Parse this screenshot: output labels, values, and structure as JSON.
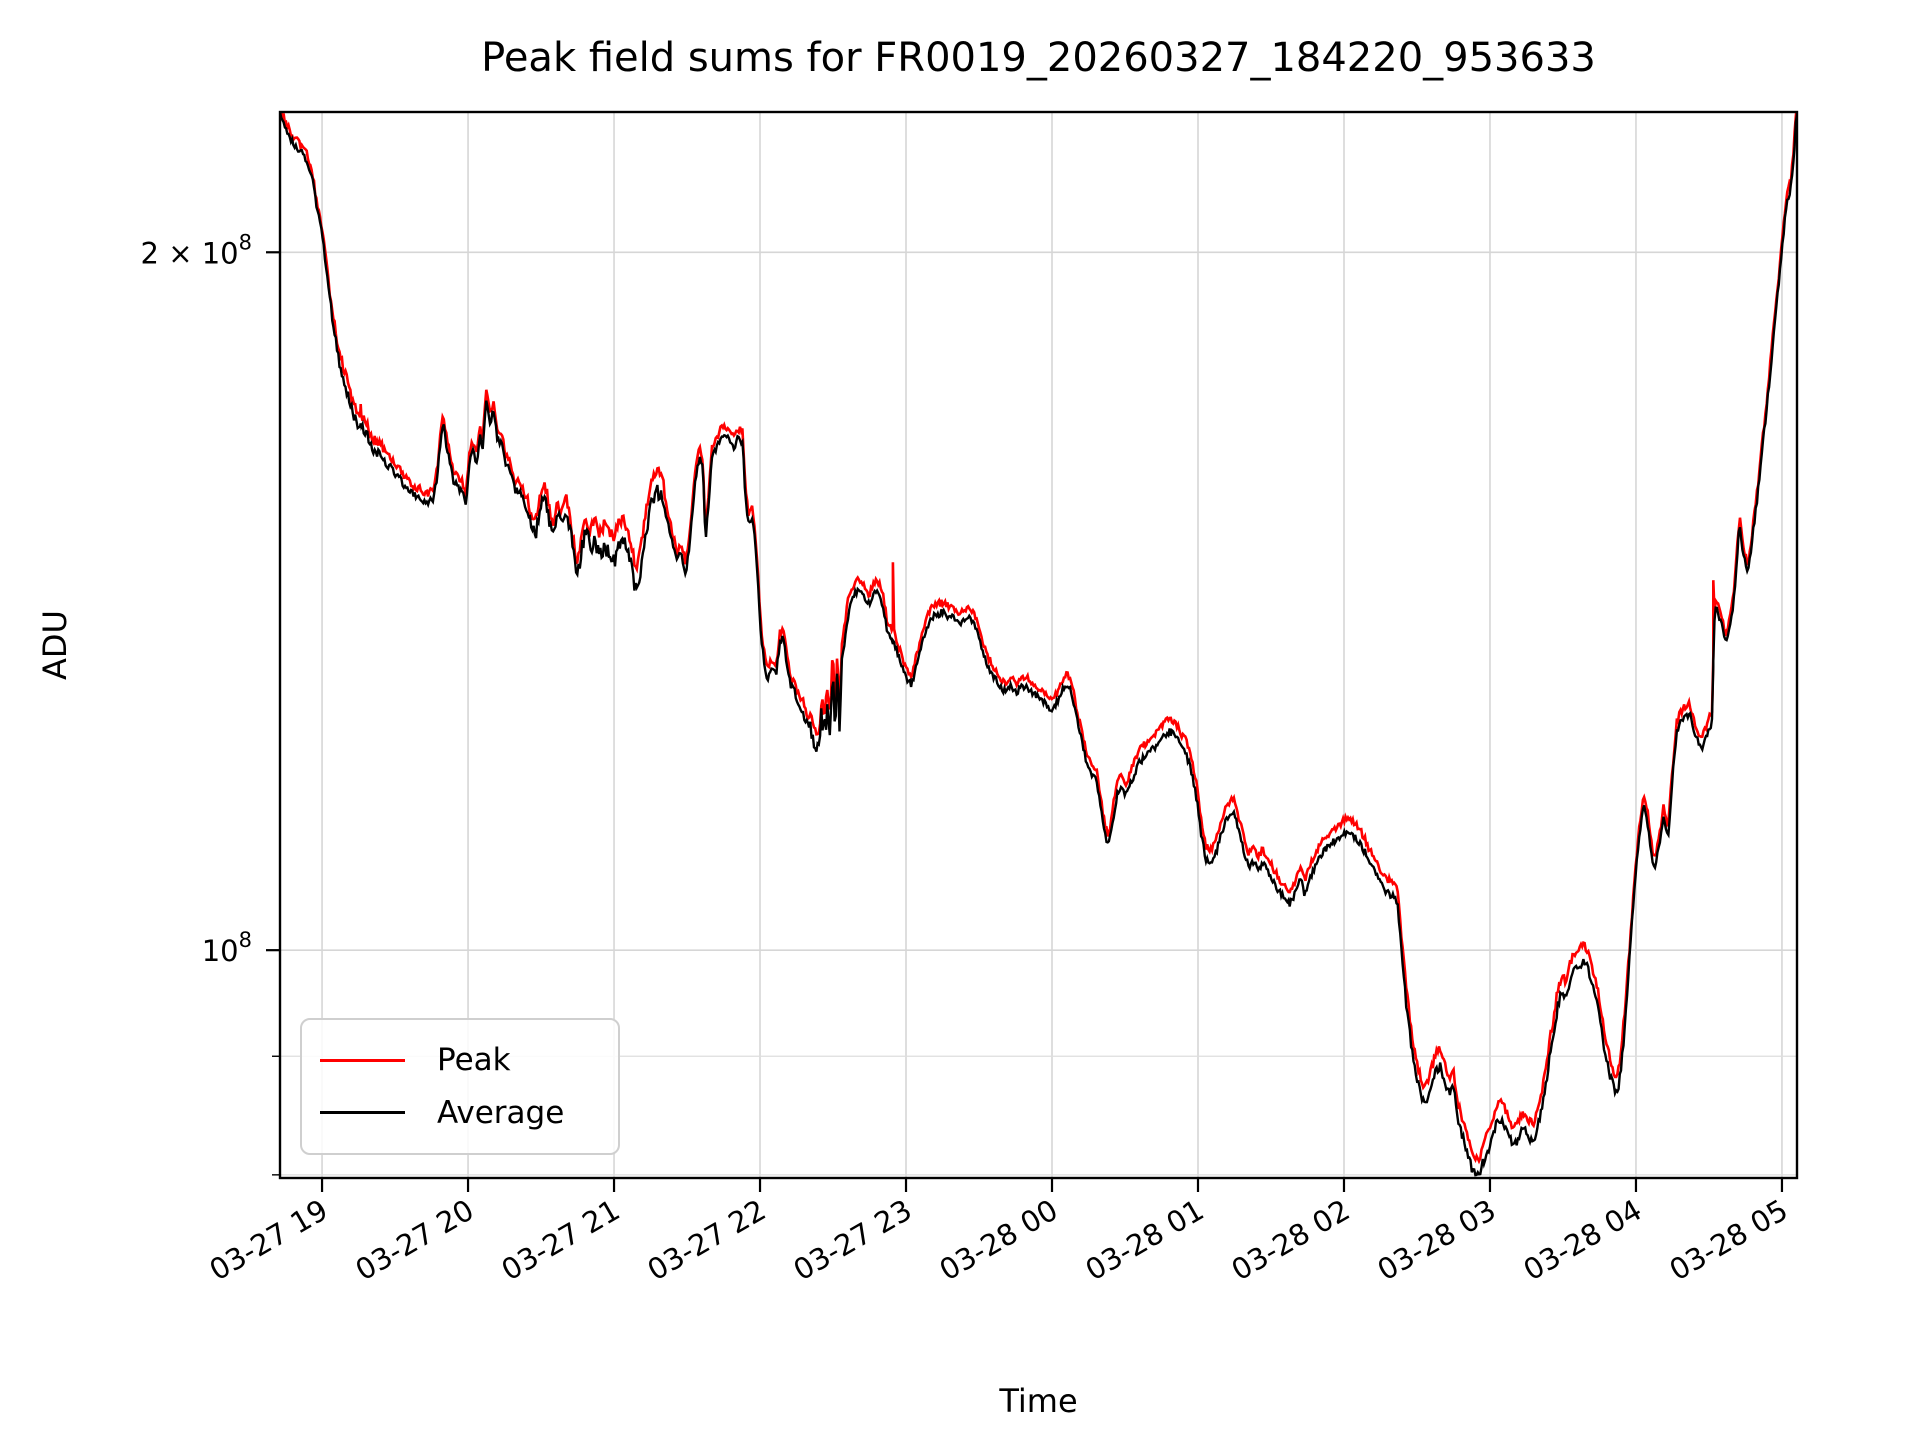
{
  "title": "Peak field sums for FR0019_20260327_184220_953633",
  "axes": {
    "x_label": "Time",
    "y_label": "ADU"
  },
  "legend": [
    {
      "label": "Peak",
      "color": "#ff0000"
    },
    {
      "label": "Average",
      "color": "#000000"
    }
  ],
  "colors": {
    "grid_major": "#d6d6d6",
    "grid_minor": "#dedede",
    "spine": "#000000",
    "background": "#ffffff"
  },
  "chart_data": {
    "type": "line",
    "title": "Peak field sums for FR0019_20260327_184220_953633",
    "xlabel": "Time",
    "ylabel": "ADU",
    "y_scale": "log",
    "grid": true,
    "legend_position": "lower left",
    "value_unit": "1e8 ADU",
    "x_unit": "hours since 2026-03-27 00:00",
    "x_range": [
      18.712,
      29.103
    ],
    "y_range": [
      0.7975,
      2.299
    ],
    "x_ticks": [
      {
        "t": 19,
        "label": "03-27 19"
      },
      {
        "t": 20,
        "label": "03-27 20"
      },
      {
        "t": 21,
        "label": "03-27 21"
      },
      {
        "t": 22,
        "label": "03-27 22"
      },
      {
        "t": 23,
        "label": "03-27 23"
      },
      {
        "t": 24,
        "label": "03-28 00"
      },
      {
        "t": 25,
        "label": "03-28 01"
      },
      {
        "t": 26,
        "label": "03-28 02"
      },
      {
        "t": 27,
        "label": "03-28 03"
      },
      {
        "t": 28,
        "label": "03-28 04"
      },
      {
        "t": 29,
        "label": "03-28 05"
      }
    ],
    "y_major_ticks": [
      {
        "v": 2.0,
        "main": "2 × 10",
        "sup": "8"
      },
      {
        "v": 1.0,
        "main": "10",
        "sup": "8"
      }
    ],
    "y_minor_ticks": [
      0.9,
      0.8
    ],
    "series": [
      {
        "name": "Peak",
        "color": "#ff0000"
      },
      {
        "name": "Average",
        "color": "#000000"
      }
    ],
    "average_anchors": [
      [
        18.712,
        2.3
      ],
      [
        18.75,
        2.262
      ],
      [
        18.79,
        2.235
      ],
      [
        18.83,
        2.22
      ],
      [
        18.87,
        2.205
      ],
      [
        18.9,
        2.19
      ],
      [
        18.93,
        2.155
      ],
      [
        18.96,
        2.1
      ],
      [
        19.0,
        2.035
      ],
      [
        19.03,
        1.965
      ],
      [
        19.06,
        1.895
      ],
      [
        19.09,
        1.835
      ],
      [
        19.12,
        1.79
      ],
      [
        19.15,
        1.762
      ],
      [
        19.18,
        1.735
      ],
      [
        19.21,
        1.703
      ],
      [
        19.24,
        1.69
      ],
      [
        19.265,
        1.682
      ],
      [
        19.29,
        1.675
      ],
      [
        19.32,
        1.66
      ],
      [
        19.35,
        1.645
      ],
      [
        19.38,
        1.638
      ],
      [
        19.41,
        1.632
      ],
      [
        19.44,
        1.62
      ],
      [
        19.47,
        1.615
      ],
      [
        19.5,
        1.606
      ],
      [
        19.53,
        1.6
      ],
      [
        19.56,
        1.585
      ],
      [
        19.6,
        1.576
      ],
      [
        19.64,
        1.57
      ],
      [
        19.68,
        1.564
      ],
      [
        19.72,
        1.559
      ],
      [
        19.76,
        1.564
      ],
      [
        19.79,
        1.6
      ],
      [
        19.81,
        1.655
      ],
      [
        19.83,
        1.69
      ],
      [
        19.855,
        1.645
      ],
      [
        19.88,
        1.62
      ],
      [
        19.9,
        1.593
      ],
      [
        19.93,
        1.585
      ],
      [
        19.96,
        1.576
      ],
      [
        19.985,
        1.556
      ],
      [
        20.01,
        1.628
      ],
      [
        20.035,
        1.64
      ],
      [
        20.06,
        1.62
      ],
      [
        20.08,
        1.668
      ],
      [
        20.1,
        1.645
      ],
      [
        20.125,
        1.73
      ],
      [
        20.15,
        1.687
      ],
      [
        20.175,
        1.708
      ],
      [
        20.2,
        1.663
      ],
      [
        20.23,
        1.652
      ],
      [
        20.26,
        1.62
      ],
      [
        20.29,
        1.608
      ],
      [
        20.32,
        1.58
      ],
      [
        20.36,
        1.574
      ],
      [
        20.4,
        1.55
      ],
      [
        20.44,
        1.52
      ],
      [
        20.47,
        1.516
      ],
      [
        20.49,
        1.553
      ],
      [
        20.52,
        1.575
      ],
      [
        20.55,
        1.545
      ],
      [
        20.58,
        1.5
      ],
      [
        20.61,
        1.548
      ],
      [
        20.64,
        1.525
      ],
      [
        20.67,
        1.553
      ],
      [
        20.7,
        1.52
      ],
      [
        20.73,
        1.47
      ],
      [
        20.75,
        1.45
      ],
      [
        20.78,
        1.49
      ],
      [
        20.81,
        1.52
      ],
      [
        20.84,
        1.487
      ],
      [
        20.87,
        1.5
      ],
      [
        20.9,
        1.48
      ],
      [
        20.93,
        1.493
      ],
      [
        20.96,
        1.487
      ],
      [
        21.0,
        1.47
      ],
      [
        21.03,
        1.497
      ],
      [
        21.06,
        1.5
      ],
      [
        21.09,
        1.49
      ],
      [
        21.12,
        1.465
      ],
      [
        21.14,
        1.44
      ],
      [
        21.16,
        1.435
      ],
      [
        21.19,
        1.47
      ],
      [
        21.22,
        1.52
      ],
      [
        21.26,
        1.56
      ],
      [
        21.3,
        1.578
      ],
      [
        21.34,
        1.558
      ],
      [
        21.37,
        1.53
      ],
      [
        21.4,
        1.5
      ],
      [
        21.43,
        1.47
      ],
      [
        21.46,
        1.485
      ],
      [
        21.49,
        1.455
      ],
      [
        21.51,
        1.48
      ],
      [
        21.53,
        1.525
      ],
      [
        21.56,
        1.6
      ],
      [
        21.585,
        1.63
      ],
      [
        21.61,
        1.612
      ],
      [
        21.625,
        1.5
      ],
      [
        21.65,
        1.56
      ],
      [
        21.67,
        1.63
      ],
      [
        21.71,
        1.652
      ],
      [
        21.75,
        1.668
      ],
      [
        21.79,
        1.66
      ],
      [
        21.82,
        1.645
      ],
      [
        21.85,
        1.663
      ],
      [
        21.88,
        1.657
      ],
      [
        21.9,
        1.57
      ],
      [
        21.92,
        1.527
      ],
      [
        21.945,
        1.537
      ],
      [
        21.965,
        1.51
      ],
      [
        21.985,
        1.44
      ],
      [
        22.005,
        1.37
      ],
      [
        22.025,
        1.335
      ],
      [
        22.05,
        1.31
      ],
      [
        22.07,
        1.318
      ],
      [
        22.09,
        1.322
      ],
      [
        22.11,
        1.313
      ],
      [
        22.135,
        1.357
      ],
      [
        22.16,
        1.366
      ],
      [
        22.185,
        1.325
      ],
      [
        22.21,
        1.3
      ],
      [
        22.24,
        1.292
      ],
      [
        22.27,
        1.27
      ],
      [
        22.3,
        1.26
      ],
      [
        22.33,
        1.25
      ],
      [
        22.36,
        1.232
      ],
      [
        22.39,
        1.22
      ],
      [
        22.405,
        1.218
      ],
      [
        22.42,
        1.26
      ],
      [
        22.44,
        1.243
      ],
      [
        22.46,
        1.266
      ],
      [
        22.48,
        1.24
      ],
      [
        22.5,
        1.32
      ],
      [
        22.515,
        1.23
      ],
      [
        22.53,
        1.33
      ],
      [
        22.545,
        1.24
      ],
      [
        22.56,
        1.33
      ],
      [
        22.58,
        1.36
      ],
      [
        22.6,
        1.39
      ],
      [
        22.63,
        1.415
      ],
      [
        22.66,
        1.428
      ],
      [
        22.69,
        1.43
      ],
      [
        22.72,
        1.418
      ],
      [
        22.75,
        1.408
      ],
      [
        22.78,
        1.43
      ],
      [
        22.81,
        1.428
      ],
      [
        22.84,
        1.41
      ],
      [
        22.87,
        1.375
      ],
      [
        22.9,
        1.362
      ],
      [
        22.92,
        1.358
      ],
      [
        22.95,
        1.338
      ],
      [
        22.98,
        1.32
      ],
      [
        23.01,
        1.308
      ],
      [
        23.04,
        1.302
      ],
      [
        23.07,
        1.325
      ],
      [
        23.095,
        1.345
      ],
      [
        23.13,
        1.372
      ],
      [
        23.17,
        1.39
      ],
      [
        23.21,
        1.395
      ],
      [
        23.25,
        1.4
      ],
      [
        23.29,
        1.393
      ],
      [
        23.33,
        1.39
      ],
      [
        23.37,
        1.383
      ],
      [
        23.41,
        1.39
      ],
      [
        23.44,
        1.392
      ],
      [
        23.48,
        1.375
      ],
      [
        23.52,
        1.35
      ],
      [
        23.56,
        1.327
      ],
      [
        23.6,
        1.312
      ],
      [
        23.64,
        1.3
      ],
      [
        23.68,
        1.293
      ],
      [
        23.72,
        1.3
      ],
      [
        23.76,
        1.292
      ],
      [
        23.8,
        1.3
      ],
      [
        23.84,
        1.297
      ],
      [
        23.88,
        1.288
      ],
      [
        23.92,
        1.285
      ],
      [
        23.96,
        1.276
      ],
      [
        24.0,
        1.27
      ],
      [
        24.05,
        1.283
      ],
      [
        24.09,
        1.303
      ],
      [
        24.12,
        1.298
      ],
      [
        24.15,
        1.278
      ],
      [
        24.18,
        1.25
      ],
      [
        24.21,
        1.228
      ],
      [
        24.24,
        1.2
      ],
      [
        24.27,
        1.192
      ],
      [
        24.3,
        1.188
      ],
      [
        24.33,
        1.155
      ],
      [
        24.36,
        1.125
      ],
      [
        24.385,
        1.11
      ],
      [
        24.42,
        1.14
      ],
      [
        24.45,
        1.17
      ],
      [
        24.48,
        1.175
      ],
      [
        24.51,
        1.166
      ],
      [
        24.55,
        1.185
      ],
      [
        24.6,
        1.205
      ],
      [
        24.65,
        1.215
      ],
      [
        24.7,
        1.222
      ],
      [
        24.75,
        1.232
      ],
      [
        24.8,
        1.243
      ],
      [
        24.84,
        1.238
      ],
      [
        24.88,
        1.226
      ],
      [
        24.92,
        1.215
      ],
      [
        24.96,
        1.19
      ],
      [
        24.99,
        1.163
      ],
      [
        25.02,
        1.125
      ],
      [
        25.05,
        1.096
      ],
      [
        25.08,
        1.09
      ],
      [
        25.12,
        1.1
      ],
      [
        25.16,
        1.122
      ],
      [
        25.2,
        1.142
      ],
      [
        25.24,
        1.148
      ],
      [
        25.28,
        1.126
      ],
      [
        25.32,
        1.1
      ],
      [
        25.35,
        1.087
      ],
      [
        25.38,
        1.092
      ],
      [
        25.41,
        1.083
      ],
      [
        25.44,
        1.09
      ],
      [
        25.47,
        1.086
      ],
      [
        25.51,
        1.072
      ],
      [
        25.55,
        1.062
      ],
      [
        25.59,
        1.052
      ],
      [
        25.63,
        1.047
      ],
      [
        25.67,
        1.06
      ],
      [
        25.7,
        1.075
      ],
      [
        25.73,
        1.058
      ],
      [
        25.77,
        1.075
      ],
      [
        25.8,
        1.087
      ],
      [
        25.85,
        1.1
      ],
      [
        25.9,
        1.11
      ],
      [
        25.95,
        1.117
      ],
      [
        26.0,
        1.123
      ],
      [
        26.03,
        1.125
      ],
      [
        26.07,
        1.12
      ],
      [
        26.11,
        1.113
      ],
      [
        26.15,
        1.1
      ],
      [
        26.18,
        1.089
      ],
      [
        26.22,
        1.078
      ],
      [
        26.25,
        1.07
      ],
      [
        26.28,
        1.062
      ],
      [
        26.31,
        1.058
      ],
      [
        26.34,
        1.055
      ],
      [
        26.365,
        1.048
      ],
      [
        26.39,
        1.01
      ],
      [
        26.41,
        0.972
      ],
      [
        26.43,
        0.943
      ],
      [
        26.45,
        0.921
      ],
      [
        26.47,
        0.9
      ],
      [
        26.5,
        0.878
      ],
      [
        26.53,
        0.864
      ],
      [
        26.56,
        0.859
      ],
      [
        26.59,
        0.87
      ],
      [
        26.63,
        0.888
      ],
      [
        26.66,
        0.892
      ],
      [
        26.69,
        0.878
      ],
      [
        26.72,
        0.868
      ],
      [
        26.75,
        0.872
      ],
      [
        26.78,
        0.845
      ],
      [
        26.81,
        0.832
      ],
      [
        26.84,
        0.82
      ],
      [
        26.87,
        0.807
      ],
      [
        26.9,
        0.798
      ],
      [
        26.93,
        0.8
      ],
      [
        26.96,
        0.813
      ],
      [
        27.0,
        0.824
      ],
      [
        27.04,
        0.84
      ],
      [
        27.08,
        0.847
      ],
      [
        27.12,
        0.836
      ],
      [
        27.16,
        0.823
      ],
      [
        27.2,
        0.83
      ],
      [
        27.23,
        0.838
      ],
      [
        27.26,
        0.833
      ],
      [
        27.29,
        0.827
      ],
      [
        27.33,
        0.84
      ],
      [
        27.37,
        0.865
      ],
      [
        27.41,
        0.9
      ],
      [
        27.44,
        0.923
      ],
      [
        27.47,
        0.951
      ],
      [
        27.5,
        0.96
      ],
      [
        27.52,
        0.95
      ],
      [
        27.55,
        0.972
      ],
      [
        27.58,
        0.98
      ],
      [
        27.61,
        0.985
      ],
      [
        27.64,
        0.988
      ],
      [
        27.67,
        0.982
      ],
      [
        27.7,
        0.968
      ],
      [
        27.73,
        0.952
      ],
      [
        27.76,
        0.928
      ],
      [
        27.79,
        0.9
      ],
      [
        27.82,
        0.885
      ],
      [
        27.85,
        0.872
      ],
      [
        27.875,
        0.868
      ],
      [
        27.9,
        0.89
      ],
      [
        27.93,
        0.94
      ],
      [
        27.96,
        1.0
      ],
      [
        27.99,
        1.065
      ],
      [
        28.02,
        1.115
      ],
      [
        28.05,
        1.155
      ],
      [
        28.08,
        1.135
      ],
      [
        28.11,
        1.095
      ],
      [
        28.13,
        1.086
      ],
      [
        28.16,
        1.11
      ],
      [
        28.19,
        1.142
      ],
      [
        28.22,
        1.12
      ],
      [
        28.25,
        1.185
      ],
      [
        28.28,
        1.245
      ],
      [
        28.31,
        1.255
      ],
      [
        28.34,
        1.262
      ],
      [
        28.37,
        1.264
      ],
      [
        28.4,
        1.242
      ],
      [
        28.43,
        1.23
      ],
      [
        28.45,
        1.222
      ],
      [
        28.48,
        1.236
      ],
      [
        28.5,
        1.247
      ],
      [
        28.52,
        1.25
      ],
      [
        28.54,
        1.41
      ],
      [
        28.56,
        1.4
      ],
      [
        28.58,
        1.385
      ],
      [
        28.6,
        1.37
      ],
      [
        28.615,
        1.358
      ],
      [
        28.64,
        1.378
      ],
      [
        28.66,
        1.4
      ],
      [
        28.68,
        1.44
      ],
      [
        28.7,
        1.5
      ],
      [
        28.71,
        1.527
      ],
      [
        28.73,
        1.49
      ],
      [
        28.755,
        1.463
      ],
      [
        28.77,
        1.457
      ],
      [
        28.8,
        1.51
      ],
      [
        28.83,
        1.565
      ],
      [
        28.86,
        1.63
      ],
      [
        28.89,
        1.7
      ],
      [
        28.92,
        1.775
      ],
      [
        28.95,
        1.86
      ],
      [
        28.98,
        1.945
      ],
      [
        29.0,
        2.005
      ],
      [
        29.02,
        2.07
      ],
      [
        29.04,
        2.11
      ],
      [
        29.06,
        2.13
      ],
      [
        29.08,
        2.2
      ],
      [
        29.095,
        2.27
      ],
      [
        29.103,
        2.295
      ]
    ],
    "peak_spikes": [
      [
        19.265,
        1.72
      ],
      [
        22.91,
        1.47
      ],
      [
        28.53,
        1.444
      ]
    ],
    "peak_offset": {
      "default": 0.006,
      "regions": [
        [
          18.712,
          19.06,
          0.002
        ],
        [
          20.84,
          21.34,
          0.016
        ],
        [
          22.36,
          22.62,
          0.012
        ],
        [
          24.4,
          26.38,
          0.009
        ],
        [
          26.4,
          27.92,
          0.012
        ],
        [
          28.52,
          29.103,
          0.004
        ]
      ]
    },
    "noise": {
      "seed": 13,
      "default_amp": 0.0035,
      "samples": 1250,
      "regions": [
        [
          19.06,
          19.42,
          0.0055
        ],
        [
          20.4,
          21.34,
          0.008
        ],
        [
          22.28,
          22.5,
          0.012
        ],
        [
          26.4,
          27.95,
          0.005
        ]
      ]
    }
  }
}
